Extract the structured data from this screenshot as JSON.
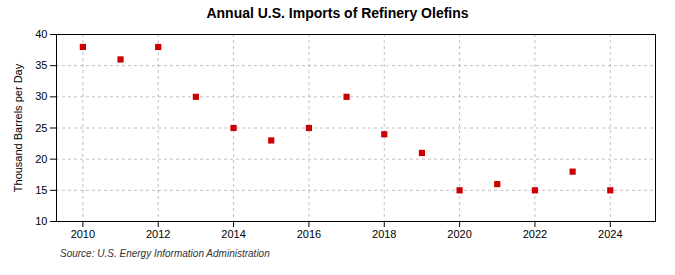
{
  "chart_data": {
    "type": "scatter",
    "title": "Annual U.S. Imports of Refinery Olefins",
    "ylabel": "Thousand Barrels per Day",
    "source": "Source: U.S. Energy Information Administration",
    "x": [
      2010,
      2011,
      2012,
      2013,
      2014,
      2015,
      2016,
      2017,
      2018,
      2019,
      2020,
      2021,
      2022,
      2023,
      2024
    ],
    "values": [
      38,
      36,
      38,
      30,
      25,
      23,
      25,
      30,
      24,
      21,
      15,
      16,
      15,
      18,
      15
    ],
    "color": "#cc0000",
    "marker": "square",
    "xlim": [
      2009.3,
      2025.2
    ],
    "ylim": [
      10,
      40
    ],
    "xticks": [
      2010,
      2012,
      2014,
      2016,
      2018,
      2020,
      2022,
      2024
    ],
    "yticks": [
      10,
      15,
      20,
      25,
      30,
      35,
      40
    ],
    "grid": true
  }
}
